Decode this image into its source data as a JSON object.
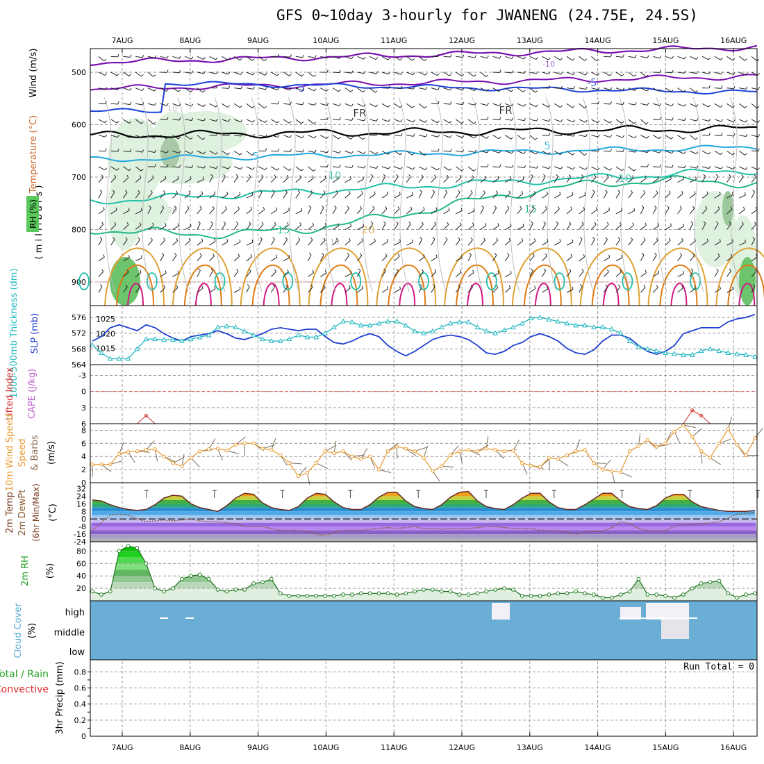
{
  "title": "GFS 0~10day 3-hourly for JWANENG (24.75E, 24.5S)",
  "colors": {
    "bg": "#ffffff",
    "grid": "#9a9a9a",
    "cloud_blue": "#6aaed6",
    "slp": "#1f3fd0",
    "thickness": "#20b8c0",
    "wind10": "#e89a30",
    "rh": "#22a020",
    "temp_orange": "#e07a10",
    "dewpt": "#8a5a30",
    "purple": "#7a10b0",
    "blue": "#1a40d8",
    "cyan": "#20a8e0",
    "teal": "#20c0a8",
    "green15": "#20b888",
    "orange20": "#e0a030",
    "magenta": "#d01880"
  },
  "chart_data": {
    "type": "line",
    "days": [
      "7AUG",
      "8AUG",
      "9AUG",
      "10AUG",
      "11AUG",
      "12AUG",
      "13AUG",
      "14AUG",
      "15AUG",
      "16AUG"
    ],
    "panels": [
      {
        "id": "upper_air",
        "ylabels": [
          "Wind (m/s)",
          "Temperature (°C)",
          "RH (%)"
        ],
        "axis_label": "( m i l l i b a r s )",
        "yticks": [
          "500",
          "600",
          "700",
          "800",
          "900"
        ],
        "ylim": [
          945,
          455
        ],
        "isotherm_labels": [
          "-10",
          "-5",
          "-5",
          "FR",
          "FR",
          "-5",
          "-5",
          "10",
          "10",
          "15",
          "15",
          "20",
          "10",
          "30",
          "10"
        ]
      },
      {
        "id": "thickness_slp",
        "ylabels": [
          "1000-500mb Thickness (dm)",
          "SLP (mb)"
        ],
        "yticks_left": [
          "564",
          "568",
          "572",
          "576"
        ],
        "yticks_right": [
          "1015",
          "1020",
          "1025"
        ],
        "series": [
          {
            "name": "SLP",
            "units": "mb",
            "values": [
              1017.5,
              1019,
              1022,
              1023,
              1022,
              1021,
              1023,
              1022,
              1020,
              1018.5,
              1017.5,
              1019,
              1019.5,
              1020,
              1021,
              1020,
              1018.5,
              1018,
              1019,
              1020,
              1021.5,
              1022,
              1021.5,
              1021,
              1021.5,
              1021.5,
              1019,
              1017,
              1016.5,
              1017.5,
              1019,
              1020,
              1019,
              1016,
              1014,
              1012.5,
              1014,
              1016,
              1018,
              1019,
              1019.5,
              1019,
              1018,
              1016,
              1013.5,
              1013,
              1014,
              1016,
              1017,
              1019,
              1020,
              1019,
              1017.5,
              1015,
              1013.5,
              1013,
              1014.5,
              1017.5,
              1019.5,
              1019.5,
              1018.5,
              1016,
              1014,
              1013,
              1014,
              1016,
              1020,
              1021,
              1022,
              1022,
              1022,
              1024,
              1025,
              1025.5,
              1026.5
            ]
          },
          {
            "name": "Thickness",
            "units": "dm",
            "values": [
              569,
              567,
              565.5,
              565.5,
              565.5,
              568,
              570.5,
              570.5,
              570.3,
              570.3,
              570,
              570.5,
              571,
              571.5,
              573.5,
              573.8,
              573.5,
              572.5,
              571.5,
              570.5,
              570,
              570,
              570.5,
              571.5,
              571,
              571,
              572,
              573.5,
              575,
              574.8,
              574,
              574,
              574.5,
              575,
              575,
              574,
              572.5,
              572,
              572.5,
              573.5,
              574.5,
              574.8,
              574.8,
              573.5,
              572.5,
              572,
              572.8,
              573.5,
              574.5,
              575.8,
              576,
              575.5,
              575,
              574.5,
              574,
              574,
              573.5,
              573.5,
              573,
              572,
              570,
              568.5,
              568,
              567.5,
              567,
              566.8,
              566.5,
              566.5,
              567.5,
              568,
              567.5,
              567,
              566.7,
              566.5,
              566
            ]
          }
        ]
      },
      {
        "id": "lifted_index",
        "ylabels": [
          "Lifted Index",
          "CAPE (J/kg)"
        ],
        "yticks": [
          "-3",
          "0",
          "3",
          "6"
        ],
        "values": [
          6,
          6,
          6,
          6,
          6,
          6,
          4.5,
          6,
          6,
          6,
          6,
          6,
          6,
          6,
          6,
          6,
          6,
          6,
          6,
          6,
          6,
          6,
          6,
          6,
          6,
          6,
          6,
          6,
          6,
          6,
          6,
          6,
          6,
          6,
          6,
          6,
          6,
          6,
          6,
          6,
          6,
          6,
          6,
          6,
          6,
          6,
          6,
          6,
          6,
          6,
          6,
          6,
          6,
          6,
          6,
          6,
          6,
          6,
          6,
          6,
          6,
          6,
          6,
          6,
          6,
          6,
          6,
          3.5,
          4.5,
          6,
          6,
          6,
          6,
          6,
          6
        ]
      },
      {
        "id": "wind10m",
        "ylabels": [
          "10m Wind Speed",
          "& Barbs",
          "(m/s)"
        ],
        "yticks": [
          "0",
          "2",
          "4",
          "6",
          "8"
        ],
        "values": [
          2.8,
          2.8,
          2.8,
          4.4,
          4.7,
          4.8,
          5,
          5.1,
          4,
          3,
          2.5,
          3.8,
          4.8,
          5.1,
          5.2,
          4.9,
          5.8,
          6,
          6,
          5.2,
          5,
          4.2,
          3,
          1,
          1.5,
          3,
          4.8,
          4.5,
          4.8,
          4,
          3.6,
          4,
          2,
          4.8,
          5.5,
          5.2,
          4.8,
          3.8,
          1.8,
          2.5,
          4.2,
          4.8,
          5,
          4.8,
          5.2,
          5,
          4.8,
          4.9,
          3,
          2.6,
          2.4,
          3.8,
          3.6,
          4.2,
          4.8,
          5,
          3,
          2,
          1.8,
          1.6,
          4.8,
          5.6,
          6.5,
          5.5,
          6,
          7.8,
          8.8,
          7,
          4.8,
          3.8,
          6,
          8.2,
          5.8,
          4.2,
          6.8
        ]
      },
      {
        "id": "temp2m",
        "ylabels": [
          "2m Temp",
          "2m DewPt",
          "(6hr Min/Max)",
          "(°C)"
        ],
        "yticks": [
          "32",
          "24",
          "16",
          "8",
          "0",
          "-8",
          "-16",
          "-24"
        ],
        "temp_values": [
          20,
          19,
          15,
          12,
          10,
          9,
          10,
          15,
          22,
          25,
          24,
          16,
          12,
          10,
          8,
          14,
          22,
          27,
          26,
          17,
          12,
          10,
          9,
          13,
          22,
          27,
          26,
          18,
          12,
          10,
          10,
          15,
          23,
          28,
          28,
          19,
          13,
          11,
          10,
          15,
          23,
          28,
          29,
          19,
          13,
          11,
          10,
          15,
          22,
          27,
          27,
          18,
          12,
          10,
          10,
          15,
          21,
          27,
          27,
          19,
          13,
          11,
          10,
          14,
          22,
          26,
          26,
          18,
          13,
          11,
          9,
          8,
          8,
          8,
          9
        ],
        "dew_values": [
          -12,
          -4,
          4,
          5,
          4,
          0,
          -3,
          -2,
          -1,
          -2,
          -1,
          0,
          -2,
          -3,
          -3,
          -4,
          -5,
          -8,
          -8,
          -8,
          -10,
          -12,
          -12,
          -12,
          -13,
          -16,
          -17,
          -14,
          -12,
          -12,
          -12,
          -11,
          -10,
          -9,
          -10,
          -9,
          -8,
          -10,
          -10,
          -11,
          -10,
          -10,
          -10,
          -9,
          -8,
          -8,
          -9,
          -10,
          -10,
          -10,
          -12,
          -12,
          -13,
          -14,
          -16,
          -14,
          -13,
          -13,
          -9,
          -3,
          -5,
          -10,
          -12,
          -13,
          -12,
          -8,
          -6,
          -6,
          -5,
          -4,
          -3,
          1,
          5,
          6,
          7
        ]
      },
      {
        "id": "rh2m",
        "ylabels": [
          "2m RH",
          "(%)"
        ],
        "yticks": [
          "20",
          "40",
          "60",
          "80"
        ],
        "values": [
          15,
          10,
          15,
          80,
          88,
          85,
          60,
          20,
          15,
          20,
          35,
          40,
          42,
          35,
          18,
          15,
          18,
          18,
          28,
          30,
          35,
          12,
          8,
          8,
          8,
          8,
          8,
          8,
          10,
          10,
          12,
          12,
          12,
          12,
          10,
          12,
          15,
          18,
          18,
          15,
          15,
          10,
          10,
          12,
          15,
          18,
          20,
          18,
          8,
          8,
          8,
          10,
          12,
          12,
          15,
          12,
          10,
          5,
          5,
          10,
          15,
          35,
          10,
          10,
          8,
          5,
          10,
          20,
          28,
          30,
          32,
          12,
          5,
          10,
          12
        ]
      },
      {
        "id": "cloud",
        "ylabels": [
          "Cloud Cover",
          "(%)"
        ],
        "levels": [
          "high",
          "middle",
          "low"
        ]
      },
      {
        "id": "precip",
        "ylabels": [
          "Total / Rain",
          "Convective",
          "3hr Precip (mm)"
        ],
        "yticks": [
          "0",
          "0.2",
          "0.4",
          "0.6",
          "0.8"
        ],
        "run_total": "Run Total = 0"
      }
    ]
  }
}
